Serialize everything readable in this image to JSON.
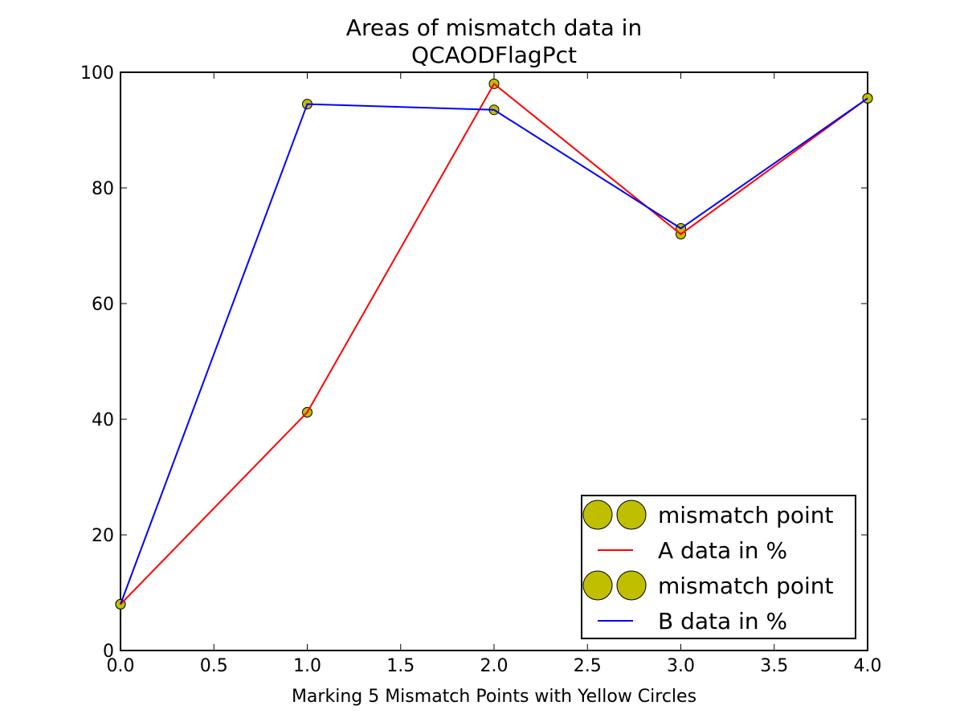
{
  "chart_data": {
    "type": "line",
    "title_lines": [
      "Areas of mismatch data in",
      "QCAODFlagPct"
    ],
    "xlabel": "Marking 5 Mismatch Points with Yellow Circles",
    "ylabel": "",
    "xlim": [
      0.0,
      4.0
    ],
    "ylim": [
      0,
      100
    ],
    "x_ticks": [
      0.0,
      0.5,
      1.0,
      1.5,
      2.0,
      2.5,
      3.0,
      3.5,
      4.0
    ],
    "x_tick_labels": [
      "0.0",
      "0.5",
      "1.0",
      "1.5",
      "2.0",
      "2.5",
      "3.0",
      "3.5",
      "4.0"
    ],
    "y_ticks": [
      0,
      20,
      40,
      60,
      80,
      100
    ],
    "y_tick_labels": [
      "0",
      "20",
      "40",
      "60",
      "80",
      "100"
    ],
    "grid": false,
    "legend_position": "lower-right",
    "x": [
      0,
      1,
      2,
      3,
      4
    ],
    "series": [
      {
        "name": "A data in %",
        "marker_label": "mismatch point",
        "color": "#ff0000",
        "values": [
          8.0,
          41.2,
          98.0,
          72.0,
          95.5
        ]
      },
      {
        "name": "B data in %",
        "marker_label": "mismatch point",
        "color": "#0000ff",
        "values": [
          8.0,
          94.5,
          93.5,
          73.0,
          95.5
        ]
      }
    ],
    "marker_color": "#bfbf00"
  }
}
